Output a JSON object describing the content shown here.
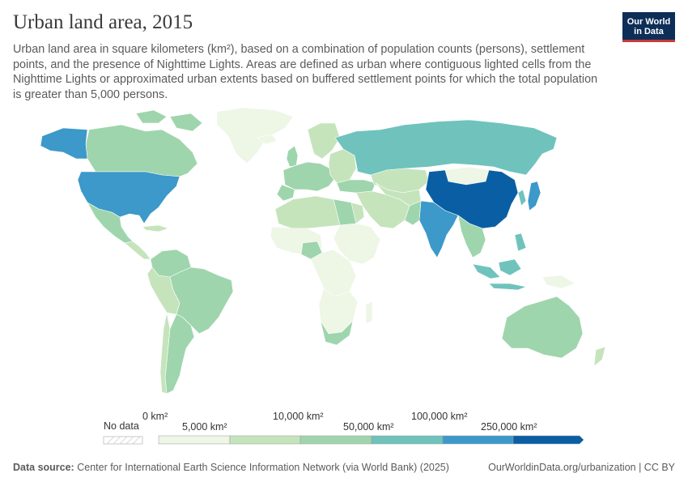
{
  "header": {
    "title": "Urban land area, 2015",
    "subtitle": "Urban land area in square kilometers (km²), based on a combination of population counts (persons), settlement points, and the presence of Nighttime Lights. Areas are defined as urban where contiguous lighted cells from the Nighttime Lights or approximated urban extents based on buffered settlement points for which the total population is greater than 5,000 persons.",
    "logo_line1": "Our World",
    "logo_line2": "in Data"
  },
  "legend": {
    "no_data_label": "No data",
    "upper_labels": [
      "0 km²",
      "10,000 km²",
      "100,000 km²"
    ],
    "lower_labels": [
      "5,000 km²",
      "50,000 km²",
      "250,000 km²"
    ],
    "colors": [
      "#eef6e6",
      "#c5e4bc",
      "#9fd5ad",
      "#6fc3bc",
      "#3c99c9",
      "#0a5fa4"
    ],
    "no_data_color": "#e6e6e6"
  },
  "map_data": {
    "type": "choropleth",
    "year": 2015,
    "unit": "km²",
    "bins": [
      0,
      5000,
      10000,
      50000,
      100000,
      250000
    ],
    "regions": [
      {
        "name": "United States",
        "bin": 4,
        "color": "#3c99c9"
      },
      {
        "name": "Alaska",
        "bin": 4,
        "color": "#3c99c9"
      },
      {
        "name": "Canada",
        "bin": 2,
        "color": "#9fd5ad"
      },
      {
        "name": "Greenland",
        "bin": 0,
        "color": "#eef6e6"
      },
      {
        "name": "Mexico",
        "bin": 2,
        "color": "#9fd5ad"
      },
      {
        "name": "Brazil",
        "bin": 2,
        "color": "#9fd5ad"
      },
      {
        "name": "Argentina",
        "bin": 2,
        "color": "#9fd5ad"
      },
      {
        "name": "Russia",
        "bin": 3,
        "color": "#6fc3bc"
      },
      {
        "name": "China",
        "bin": 5,
        "color": "#0a5fa4"
      },
      {
        "name": "India",
        "bin": 4,
        "color": "#3c99c9"
      },
      {
        "name": "Japan",
        "bin": 4,
        "color": "#3c99c9"
      },
      {
        "name": "Indonesia",
        "bin": 3,
        "color": "#6fc3bc"
      },
      {
        "name": "Australia",
        "bin": 2,
        "color": "#9fd5ad"
      },
      {
        "name": "Nigeria",
        "bin": 2,
        "color": "#9fd5ad"
      },
      {
        "name": "South Africa",
        "bin": 2,
        "color": "#9fd5ad"
      },
      {
        "name": "Kazakhstan",
        "bin": 1,
        "color": "#c5e4bc"
      },
      {
        "name": "Mongolia",
        "bin": 0,
        "color": "#eef6e6"
      }
    ]
  },
  "footer": {
    "source_label": "Data source:",
    "source_text": "Center for International Earth Science Information Network (via World Bank) (2025)",
    "right_text": "OurWorldinData.org/urbanization | CC BY"
  }
}
